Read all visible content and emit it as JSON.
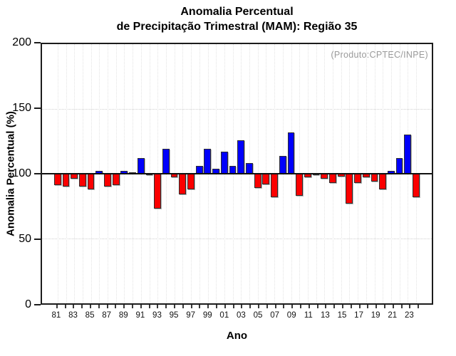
{
  "chart_data": {
    "type": "bar",
    "title_line1": "Anomalia Percentual",
    "title_line2": "de Precipitação Trimestral (MAM): Região 35",
    "title": "Anomalia Percentual de Precipitação Trimestral (MAM): Região 35",
    "annotation": "(Produto:CPTEC/INPE)",
    "xlabel": "Ano",
    "ylabel": "Anomalia Percentual (%)",
    "ylim": [
      0,
      200
    ],
    "yticks": [
      200,
      150,
      100,
      50,
      0
    ],
    "grid_y": [
      150,
      50
    ],
    "baseline": 100,
    "legend": "none",
    "categories": [
      "81",
      "82",
      "83",
      "84",
      "85",
      "86",
      "87",
      "88",
      "89",
      "90",
      "91",
      "92",
      "93",
      "94",
      "95",
      "96",
      "97",
      "98",
      "99",
      "00",
      "01",
      "02",
      "03",
      "04",
      "05",
      "06",
      "07",
      "08",
      "09",
      "10",
      "11",
      "12",
      "13",
      "14",
      "15",
      "16",
      "17",
      "18",
      "19",
      "20",
      "21",
      "22",
      "23",
      "24"
    ],
    "values": [
      91,
      90,
      96,
      90,
      88,
      102,
      90,
      91,
      102,
      100,
      112,
      99,
      73,
      119,
      97,
      84,
      88,
      106,
      119,
      104,
      117,
      106,
      126,
      108,
      89,
      92,
      82,
      114,
      132,
      83,
      97,
      99,
      96,
      93,
      98,
      77,
      93,
      97,
      94,
      88,
      102,
      112,
      130,
      82
    ],
    "x_labels_shown": [
      "81",
      "83",
      "85",
      "87",
      "89",
      "91",
      "93",
      "95",
      "97",
      "99",
      "01",
      "03",
      "05",
      "07",
      "09",
      "11",
      "13",
      "15",
      "17",
      "19",
      "21",
      "23"
    ],
    "colors": {
      "above_baseline": "#0000fb",
      "below_baseline": "#fb0000",
      "annotation": "#9a9a9a",
      "axis": "#1c1c1c",
      "baseline_line": "#111111"
    }
  }
}
